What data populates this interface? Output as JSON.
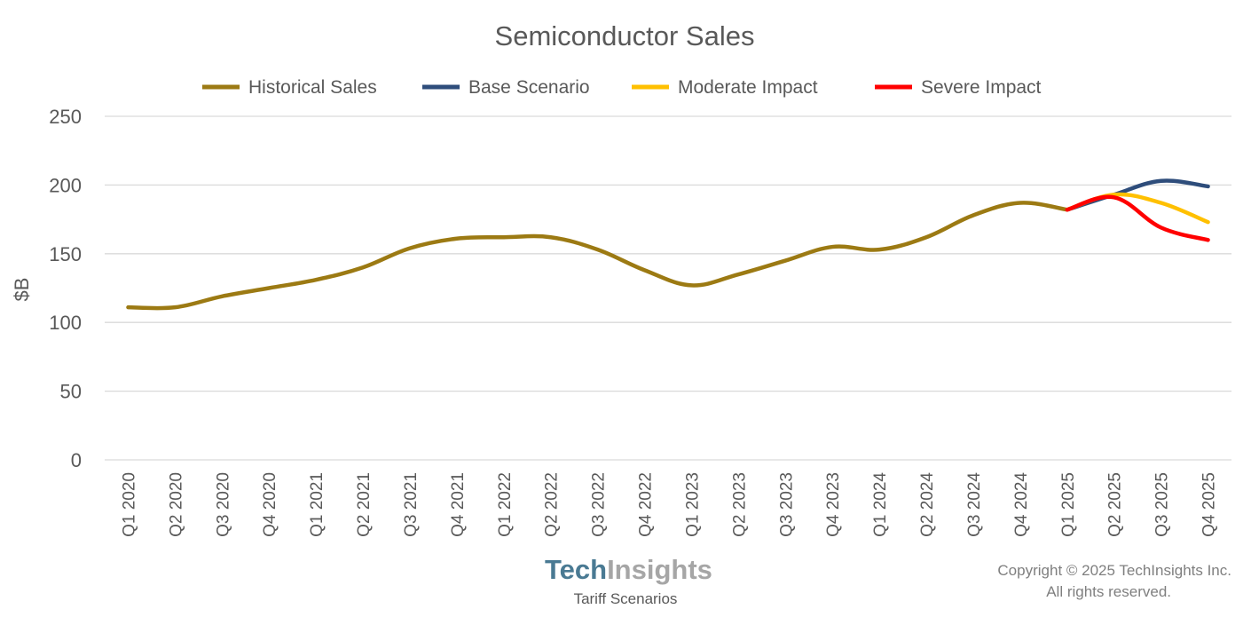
{
  "chart_data": {
    "type": "line",
    "title": "Semiconductor Sales",
    "ylabel": "$B",
    "xlabel": "",
    "ylim": [
      0,
      250
    ],
    "yticks": [
      0,
      50,
      100,
      150,
      200,
      250
    ],
    "grid": true,
    "legend_position": "top",
    "categories": [
      "Q1 2020",
      "Q2 2020",
      "Q3 2020",
      "Q4 2020",
      "Q1 2021",
      "Q2 2021",
      "Q3 2021",
      "Q4 2021",
      "Q1 2022",
      "Q2 2022",
      "Q3 2022",
      "Q4 2022",
      "Q1 2023",
      "Q2 2023",
      "Q3 2023",
      "Q4 2023",
      "Q1 2024",
      "Q2 2024",
      "Q3 2024",
      "Q4 2024",
      "Q1 2025",
      "Q2 2025",
      "Q3 2025",
      "Q4 2025"
    ],
    "series": [
      {
        "name": "Historical Sales",
        "color": "#9c7a13",
        "values": [
          111,
          111,
          119,
          125,
          131,
          140,
          154,
          161,
          162,
          162,
          153,
          138,
          127,
          135,
          145,
          155,
          153,
          162,
          178,
          187,
          182,
          null,
          null,
          null
        ]
      },
      {
        "name": "Base Scenario",
        "color": "#2e4d7b",
        "values": [
          null,
          null,
          null,
          null,
          null,
          null,
          null,
          null,
          null,
          null,
          null,
          null,
          null,
          null,
          null,
          null,
          null,
          null,
          null,
          null,
          182,
          193,
          203,
          199
        ]
      },
      {
        "name": "Moderate Impact",
        "color": "#ffc000",
        "values": [
          null,
          null,
          null,
          null,
          null,
          null,
          null,
          null,
          null,
          null,
          null,
          null,
          null,
          null,
          null,
          null,
          null,
          null,
          null,
          null,
          182,
          193,
          187,
          173
        ]
      },
      {
        "name": "Severe Impact",
        "color": "#ff0000",
        "values": [
          null,
          null,
          null,
          null,
          null,
          null,
          null,
          null,
          null,
          null,
          null,
          null,
          null,
          null,
          null,
          null,
          null,
          null,
          null,
          null,
          182,
          191,
          169,
          160
        ]
      }
    ]
  },
  "branding": {
    "logo_part1": "Tech",
    "logo_part2": "Insights",
    "subtitle": "Tariff Scenarios",
    "copyright_line1": "Copyright © 2025 TechInsights Inc.",
    "copyright_line2": "All rights reserved."
  }
}
